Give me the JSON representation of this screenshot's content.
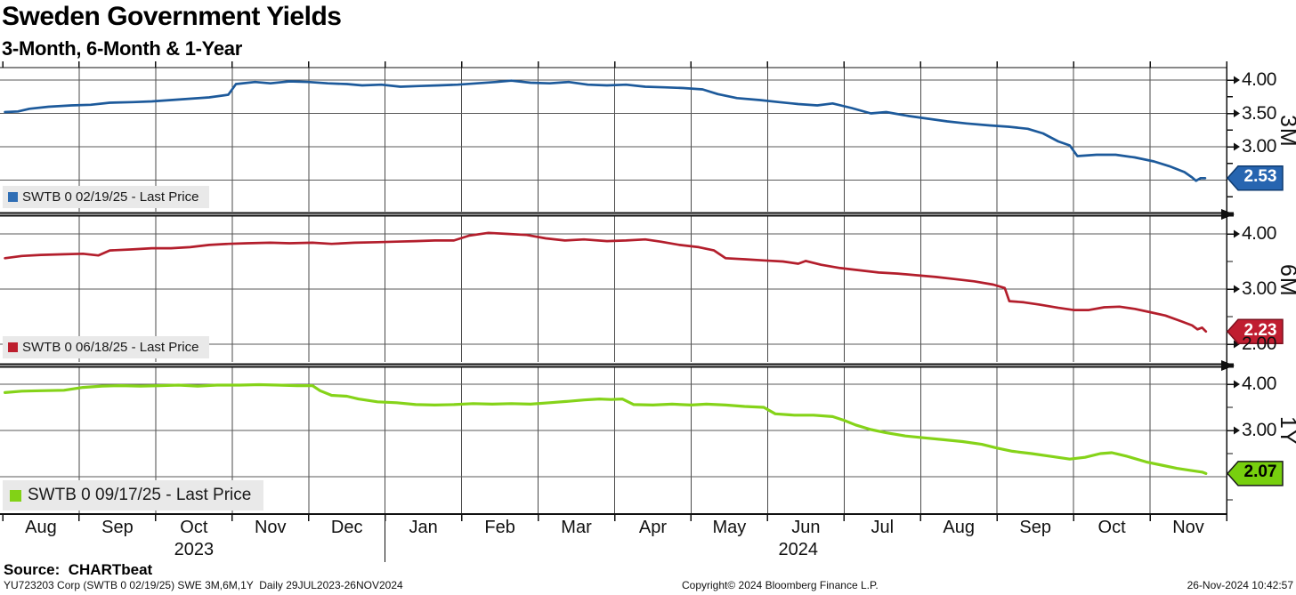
{
  "header": {
    "title": "Sweden Government Yields",
    "subtitle": "3-Month, 6-Month & 1-Year"
  },
  "footer": {
    "source": "Source:  CHARTbeat",
    "terminal_line": "YU723203 Corp (SWTB 0 02/19/25) SWE 3M,6M,1Y  Daily 29JUL2023-26NOV2024",
    "copyright": "Copyright© 2024 Bloomberg Finance L.P.",
    "timestamp": "26-Nov-2024 10:42:57"
  },
  "colors": {
    "background": "#ffffff",
    "grid_horizontal": "#5a5a5a",
    "grid_vertical": "#4a4a4a",
    "axis": "#111111",
    "legend_background": "#e9e9e9"
  },
  "chart_data": {
    "type": "line",
    "title": "Sweden Government Yields",
    "subtitle": "3-Month, 6-Month & 1-Year",
    "x_range_label": "29JUL2023-26NOV2024",
    "x_unit": "months since Aug-2023 (0 = Aug'23 ... 15 = Nov'24)",
    "x_axis": {
      "months": [
        "Aug",
        "Sep",
        "Oct",
        "Nov",
        "Dec",
        "Jan",
        "Feb",
        "Mar",
        "Apr",
        "May",
        "Jun",
        "Jul",
        "Aug",
        "Sep",
        "Oct",
        "Nov"
      ],
      "years": [
        {
          "label": "2023",
          "month_index": 2.5
        },
        {
          "label": "2024",
          "month_index": 10.4
        }
      ],
      "year_divider_month_index": 5
    },
    "panels": [
      {
        "id": "3M",
        "axis_label": "3M",
        "legend": "SWTB 0 02/19/25 - Last Price",
        "last_price": "2.53",
        "line_color": "#1d5a9b",
        "swatch_color": "#2f6eb5",
        "badge_bg": "#2765b0",
        "badge_border": "#0d3a70",
        "badge_text_color": "#ffffff",
        "y_tick_labels": [
          "4.00",
          "3.50",
          "3.00"
        ],
        "y_gridlines": [
          4.0,
          3.5,
          3.0,
          2.5
        ],
        "y_minor_ticks": [
          3.75,
          3.25,
          2.75,
          2.25
        ],
        "points": [
          [
            0.03,
            3.52
          ],
          [
            0.2,
            3.53
          ],
          [
            0.35,
            3.57
          ],
          [
            0.6,
            3.6
          ],
          [
            0.9,
            3.62
          ],
          [
            1.15,
            3.63
          ],
          [
            1.4,
            3.66
          ],
          [
            1.7,
            3.67
          ],
          [
            1.95,
            3.68
          ],
          [
            2.2,
            3.7
          ],
          [
            2.45,
            3.72
          ],
          [
            2.7,
            3.74
          ],
          [
            2.95,
            3.78
          ],
          [
            3.05,
            3.94
          ],
          [
            3.3,
            3.97
          ],
          [
            3.5,
            3.95
          ],
          [
            3.75,
            3.98
          ],
          [
            4.0,
            3.97
          ],
          [
            4.25,
            3.95
          ],
          [
            4.5,
            3.94
          ],
          [
            4.7,
            3.92
          ],
          [
            4.95,
            3.93
          ],
          [
            5.2,
            3.9
          ],
          [
            5.45,
            3.91
          ],
          [
            5.7,
            3.92
          ],
          [
            5.95,
            3.93
          ],
          [
            6.2,
            3.95
          ],
          [
            6.45,
            3.97
          ],
          [
            6.65,
            3.99
          ],
          [
            6.9,
            3.96
          ],
          [
            7.15,
            3.95
          ],
          [
            7.4,
            3.97
          ],
          [
            7.65,
            3.93
          ],
          [
            7.9,
            3.92
          ],
          [
            8.15,
            3.93
          ],
          [
            8.4,
            3.9
          ],
          [
            8.65,
            3.89
          ],
          [
            8.9,
            3.88
          ],
          [
            9.15,
            3.86
          ],
          [
            9.35,
            3.79
          ],
          [
            9.6,
            3.73
          ],
          [
            9.9,
            3.7
          ],
          [
            10.15,
            3.67
          ],
          [
            10.4,
            3.64
          ],
          [
            10.65,
            3.62
          ],
          [
            10.85,
            3.65
          ],
          [
            11.1,
            3.58
          ],
          [
            11.35,
            3.5
          ],
          [
            11.55,
            3.52
          ],
          [
            11.85,
            3.46
          ],
          [
            12.1,
            3.42
          ],
          [
            12.35,
            3.38
          ],
          [
            12.6,
            3.35
          ],
          [
            12.9,
            3.32
          ],
          [
            13.15,
            3.3
          ],
          [
            13.4,
            3.27
          ],
          [
            13.6,
            3.2
          ],
          [
            13.8,
            3.08
          ],
          [
            13.95,
            3.02
          ],
          [
            14.05,
            2.86
          ],
          [
            14.3,
            2.88
          ],
          [
            14.55,
            2.88
          ],
          [
            14.8,
            2.84
          ],
          [
            15.05,
            2.78
          ],
          [
            15.25,
            2.71
          ],
          [
            15.45,
            2.62
          ],
          [
            15.55,
            2.54
          ],
          [
            15.6,
            2.49
          ],
          [
            15.66,
            2.53
          ],
          [
            15.72,
            2.53
          ]
        ]
      },
      {
        "id": "6M",
        "axis_label": "6M",
        "legend": "SWTB 0 06/18/25 - Last Price",
        "last_price": "2.23",
        "line_color": "#b31e2c",
        "swatch_color": "#bd1e2e",
        "badge_bg": "#c01d30",
        "badge_border": "#7c0f1e",
        "badge_text_color": "#ffffff",
        "y_tick_labels": [
          "4.00",
          "3.00",
          "2.00"
        ],
        "y_gridlines": [
          4.0,
          3.0,
          2.0
        ],
        "y_minor_ticks": [
          3.5,
          2.5
        ],
        "points": [
          [
            0.03,
            3.56
          ],
          [
            0.25,
            3.6
          ],
          [
            0.5,
            3.62
          ],
          [
            0.8,
            3.63
          ],
          [
            1.05,
            3.64
          ],
          [
            1.25,
            3.61
          ],
          [
            1.4,
            3.7
          ],
          [
            1.7,
            3.72
          ],
          [
            1.95,
            3.74
          ],
          [
            2.2,
            3.74
          ],
          [
            2.45,
            3.76
          ],
          [
            2.7,
            3.8
          ],
          [
            2.95,
            3.82
          ],
          [
            3.2,
            3.83
          ],
          [
            3.5,
            3.84
          ],
          [
            3.75,
            3.83
          ],
          [
            4.05,
            3.84
          ],
          [
            4.3,
            3.82
          ],
          [
            4.6,
            3.84
          ],
          [
            4.9,
            3.85
          ],
          [
            5.15,
            3.86
          ],
          [
            5.4,
            3.87
          ],
          [
            5.65,
            3.88
          ],
          [
            5.9,
            3.88
          ],
          [
            6.1,
            3.97
          ],
          [
            6.35,
            4.02
          ],
          [
            6.6,
            4.0
          ],
          [
            6.85,
            3.98
          ],
          [
            7.1,
            3.92
          ],
          [
            7.35,
            3.88
          ],
          [
            7.6,
            3.9
          ],
          [
            7.9,
            3.87
          ],
          [
            8.15,
            3.88
          ],
          [
            8.4,
            3.9
          ],
          [
            8.6,
            3.86
          ],
          [
            8.85,
            3.8
          ],
          [
            9.1,
            3.76
          ],
          [
            9.3,
            3.7
          ],
          [
            9.45,
            3.56
          ],
          [
            9.7,
            3.54
          ],
          [
            9.95,
            3.52
          ],
          [
            10.2,
            3.5
          ],
          [
            10.4,
            3.46
          ],
          [
            10.5,
            3.51
          ],
          [
            10.7,
            3.44
          ],
          [
            10.95,
            3.38
          ],
          [
            11.2,
            3.34
          ],
          [
            11.45,
            3.3
          ],
          [
            11.7,
            3.28
          ],
          [
            11.95,
            3.25
          ],
          [
            12.2,
            3.22
          ],
          [
            12.45,
            3.18
          ],
          [
            12.7,
            3.14
          ],
          [
            12.95,
            3.08
          ],
          [
            13.1,
            3.02
          ],
          [
            13.16,
            2.78
          ],
          [
            13.35,
            2.76
          ],
          [
            13.55,
            2.72
          ],
          [
            13.8,
            2.66
          ],
          [
            14.0,
            2.62
          ],
          [
            14.2,
            2.62
          ],
          [
            14.4,
            2.67
          ],
          [
            14.6,
            2.68
          ],
          [
            14.8,
            2.64
          ],
          [
            15.0,
            2.58
          ],
          [
            15.2,
            2.52
          ],
          [
            15.4,
            2.42
          ],
          [
            15.55,
            2.34
          ],
          [
            15.62,
            2.27
          ],
          [
            15.68,
            2.3
          ],
          [
            15.73,
            2.23
          ]
        ]
      },
      {
        "id": "1Y",
        "axis_label": "1Y",
        "legend": "SWTB 0 09/17/25 - Last Price",
        "last_price": "2.07",
        "line_color": "#85d319",
        "swatch_color": "#82d216",
        "badge_bg": "#77cf0e",
        "badge_border": "#1a1a1a",
        "badge_text_color": "#000000",
        "y_tick_labels": [
          "4.00",
          "3.00"
        ],
        "y_gridlines": [
          4.0,
          3.0,
          2.0
        ],
        "y_minor_ticks": [
          3.5,
          2.5,
          1.5
        ],
        "points": [
          [
            0.03,
            3.82
          ],
          [
            0.25,
            3.85
          ],
          [
            0.5,
            3.86
          ],
          [
            0.8,
            3.87
          ],
          [
            1.05,
            3.93
          ],
          [
            1.3,
            3.96
          ],
          [
            1.55,
            3.97
          ],
          [
            1.8,
            3.96
          ],
          [
            2.05,
            3.97
          ],
          [
            2.3,
            3.98
          ],
          [
            2.55,
            3.96
          ],
          [
            2.8,
            3.98
          ],
          [
            3.1,
            3.98
          ],
          [
            3.35,
            3.99
          ],
          [
            3.6,
            3.98
          ],
          [
            3.85,
            3.97
          ],
          [
            4.05,
            3.97
          ],
          [
            4.15,
            3.86
          ],
          [
            4.3,
            3.76
          ],
          [
            4.5,
            3.74
          ],
          [
            4.65,
            3.68
          ],
          [
            4.9,
            3.62
          ],
          [
            5.15,
            3.6
          ],
          [
            5.4,
            3.56
          ],
          [
            5.65,
            3.55
          ],
          [
            5.9,
            3.56
          ],
          [
            6.15,
            3.58
          ],
          [
            6.4,
            3.57
          ],
          [
            6.65,
            3.58
          ],
          [
            6.9,
            3.57
          ],
          [
            7.15,
            3.6
          ],
          [
            7.4,
            3.63
          ],
          [
            7.6,
            3.66
          ],
          [
            7.8,
            3.68
          ],
          [
            7.95,
            3.67
          ],
          [
            8.1,
            3.68
          ],
          [
            8.25,
            3.56
          ],
          [
            8.5,
            3.55
          ],
          [
            8.75,
            3.57
          ],
          [
            9.0,
            3.55
          ],
          [
            9.2,
            3.57
          ],
          [
            9.45,
            3.55
          ],
          [
            9.7,
            3.52
          ],
          [
            9.95,
            3.5
          ],
          [
            10.1,
            3.36
          ],
          [
            10.35,
            3.33
          ],
          [
            10.6,
            3.33
          ],
          [
            10.85,
            3.3
          ],
          [
            11.0,
            3.22
          ],
          [
            11.15,
            3.12
          ],
          [
            11.35,
            3.02
          ],
          [
            11.55,
            2.95
          ],
          [
            11.8,
            2.88
          ],
          [
            12.05,
            2.84
          ],
          [
            12.3,
            2.8
          ],
          [
            12.55,
            2.76
          ],
          [
            12.8,
            2.7
          ],
          [
            13.0,
            2.62
          ],
          [
            13.2,
            2.55
          ],
          [
            13.45,
            2.5
          ],
          [
            13.7,
            2.44
          ],
          [
            13.95,
            2.38
          ],
          [
            14.15,
            2.42
          ],
          [
            14.35,
            2.5
          ],
          [
            14.5,
            2.52
          ],
          [
            14.7,
            2.44
          ],
          [
            14.95,
            2.32
          ],
          [
            15.15,
            2.25
          ],
          [
            15.35,
            2.18
          ],
          [
            15.55,
            2.13
          ],
          [
            15.68,
            2.1
          ],
          [
            15.73,
            2.07
          ]
        ]
      }
    ]
  }
}
